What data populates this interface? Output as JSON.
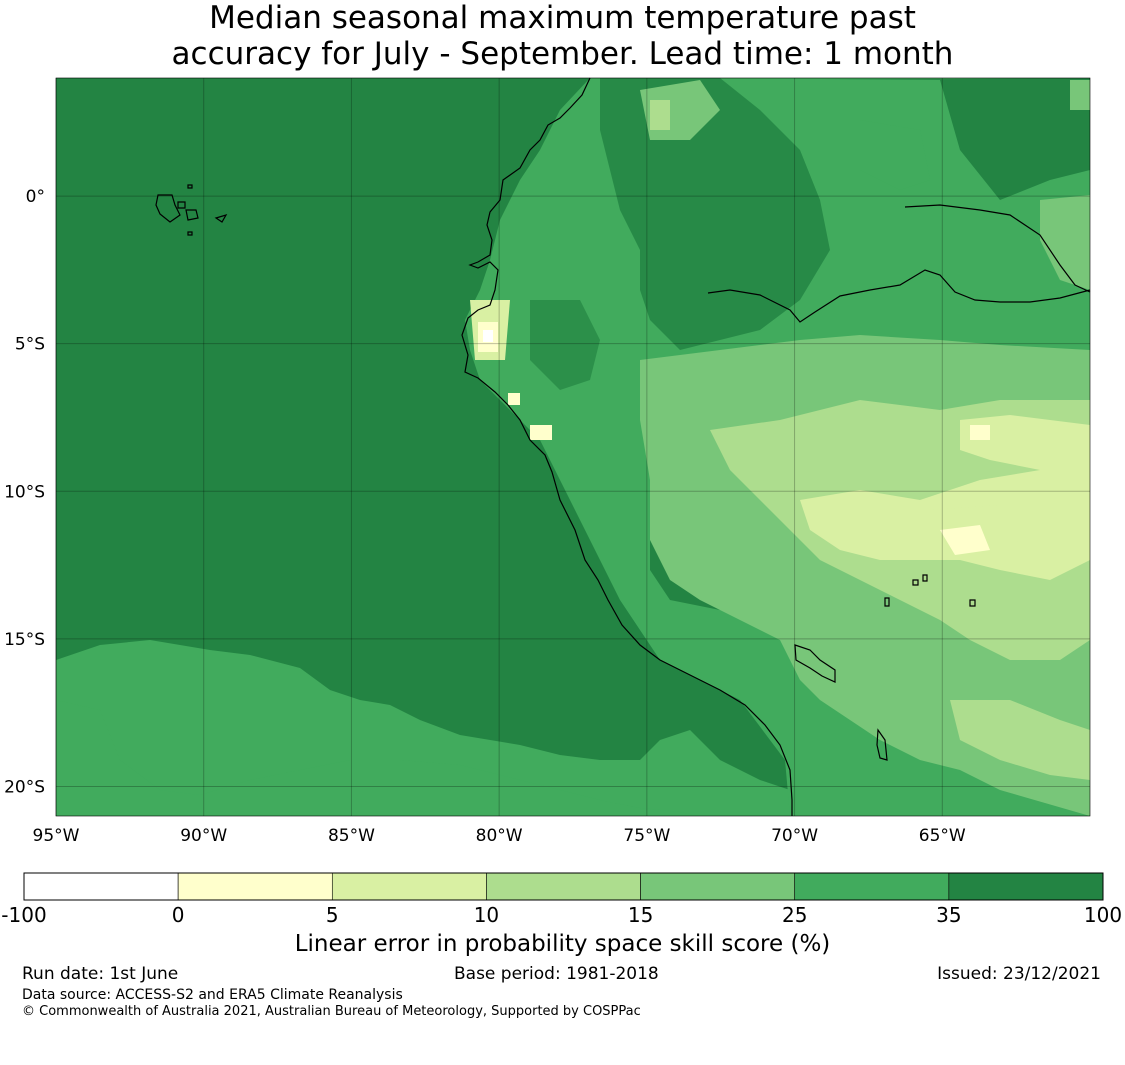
{
  "title": {
    "line1": "Median seasonal maximum temperature past",
    "line2": "accuracy for July - September. Lead time: 1 month"
  },
  "map": {
    "lon_range": [
      -95,
      -60
    ],
    "lat_range": [
      -21,
      4
    ],
    "lat_ticks": [
      {
        "value": 0,
        "label": "0°"
      },
      {
        "value": -5,
        "label": "5°S"
      },
      {
        "value": -10,
        "label": "10°S"
      },
      {
        "value": -15,
        "label": "15°S"
      },
      {
        "value": -20,
        "label": "20°S"
      }
    ],
    "lon_ticks": [
      {
        "value": -95,
        "label": "95°W"
      },
      {
        "value": -90,
        "label": "90°W"
      },
      {
        "value": -85,
        "label": "85°W"
      },
      {
        "value": -80,
        "label": "80°W"
      },
      {
        "value": -75,
        "label": "75°W"
      },
      {
        "value": -70,
        "label": "70°W"
      },
      {
        "value": -65,
        "label": "65°W"
      }
    ]
  },
  "colorbar": {
    "title": "Linear error in probability space skill score (%)",
    "tick_labels": [
      "-100",
      "0",
      "5",
      "10",
      "15",
      "25",
      "35",
      "100"
    ],
    "bins": [
      {
        "range": "-100 to 0",
        "color": "#ffffff"
      },
      {
        "range": "0 to 5",
        "color": "#ffffcc"
      },
      {
        "range": "5 to 10",
        "color": "#d9f0a3"
      },
      {
        "range": "10 to 15",
        "color": "#addd8e"
      },
      {
        "range": "15 to 25",
        "color": "#78c679"
      },
      {
        "range": "25 to 35",
        "color": "#41ab5d"
      },
      {
        "range": "35 to 100",
        "color": "#238443"
      }
    ]
  },
  "footer": {
    "run_date": "Run date: 1st June",
    "base_period": "Base period: 1981-2018",
    "issued": "Issued: 23/12/2021",
    "data_source": "Data source: ACCESS-S2 and ERA5 Climate Reanalysis",
    "copyright": "© Commonwealth of Australia 2021, Australian Bureau of Meteorology, Supported by COSPPac"
  }
}
